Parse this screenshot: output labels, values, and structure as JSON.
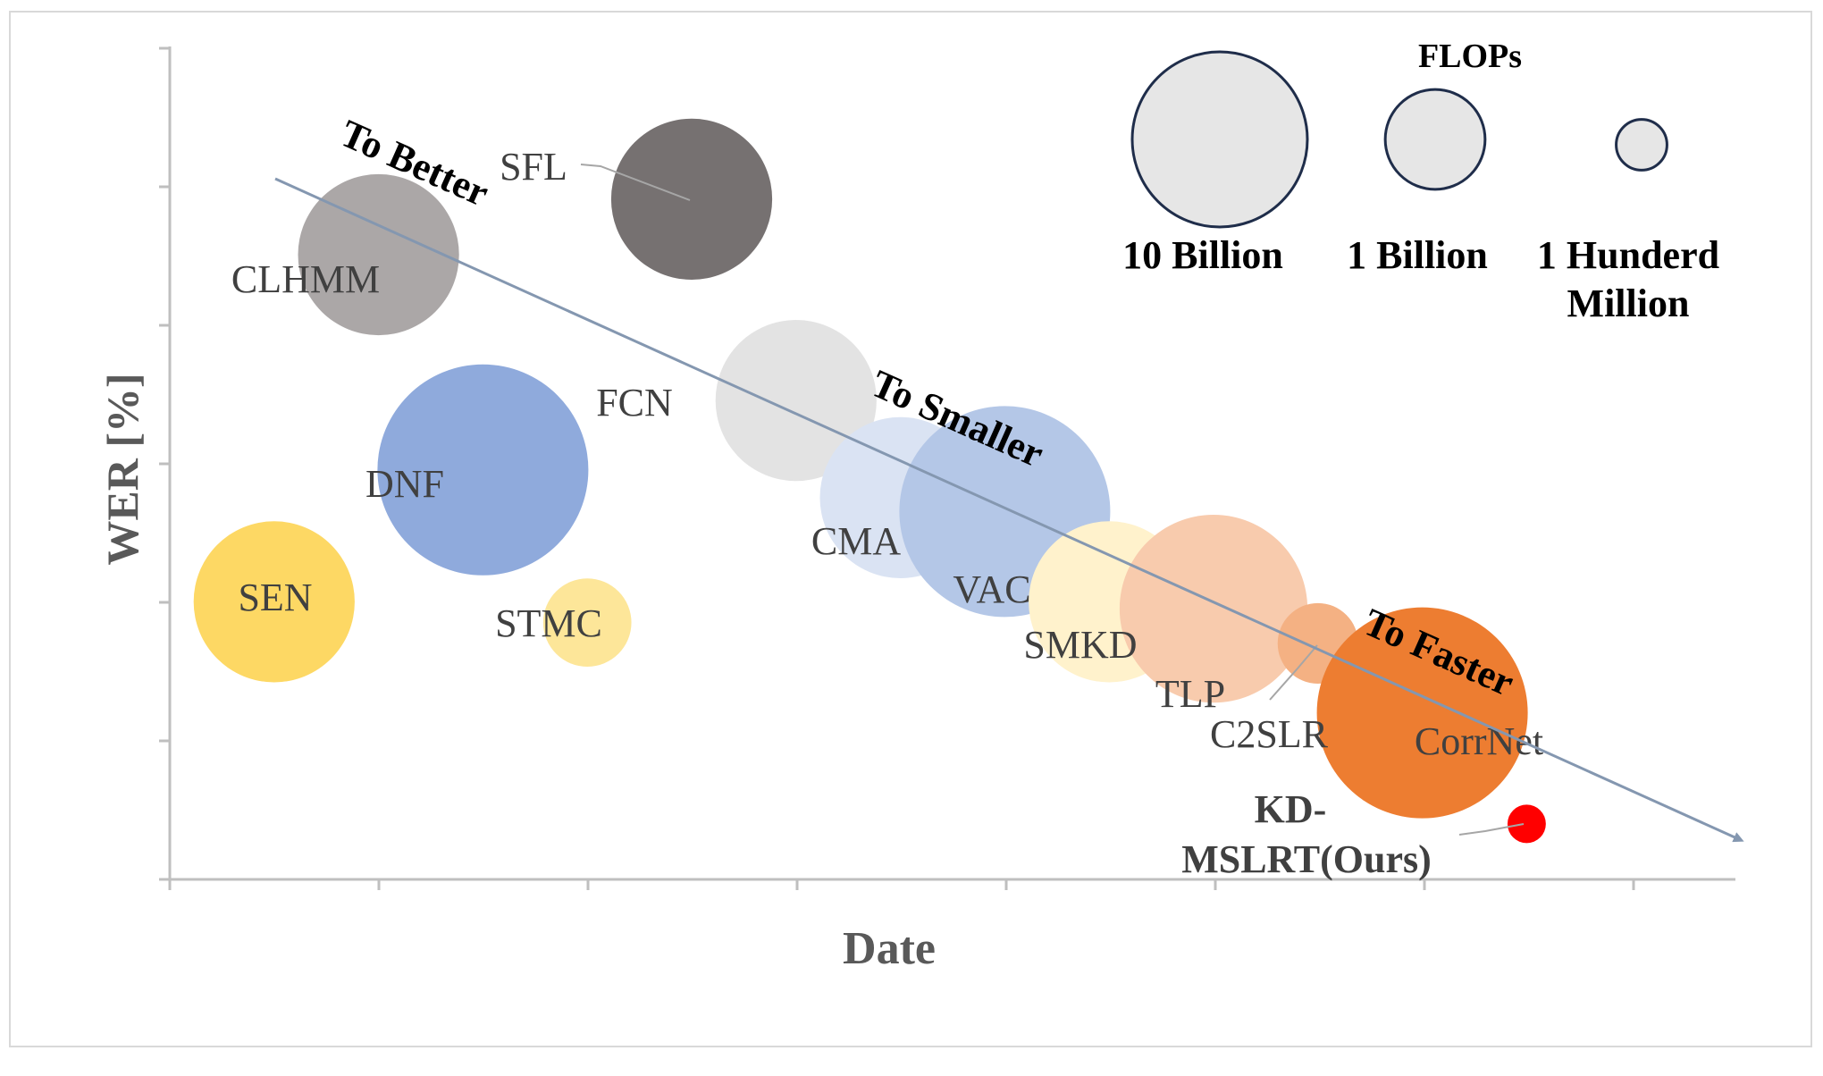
{
  "chart_data": {
    "type": "scatter",
    "xlabel": "Date",
    "ylabel": "WER [%]",
    "grid": false,
    "x_ticks": 8,
    "y_ticks": 7,
    "xlim": [
      0,
      7.5
    ],
    "ylim": [
      0,
      6
    ],
    "size_legend": {
      "title": "FLOPs",
      "entries": [
        {
          "label": "10 Billion",
          "radius_scale": 1.0
        },
        {
          "label": "1 Billion",
          "radius_scale": 0.57
        },
        {
          "label": "1 Hunderd Million",
          "radius_scale": 0.29
        }
      ]
    },
    "points": [
      {
        "name": "SEN",
        "x": 0.5,
        "y": 2.0,
        "size": 0.84,
        "color": "#FDD864",
        "label_bold": false
      },
      {
        "name": "CLHMM",
        "x": 1.0,
        "y": 4.5,
        "size": 0.84,
        "color": "#ABA7A7",
        "label_bold": false
      },
      {
        "name": "DNF",
        "x": 1.5,
        "y": 2.95,
        "size": 1.1,
        "color": "#8FAADC",
        "label_bold": false
      },
      {
        "name": "STMC",
        "x": 2.0,
        "y": 1.85,
        "size": 0.46,
        "color": "#FDE699",
        "label_bold": false
      },
      {
        "name": "SFL",
        "x": 2.5,
        "y": 4.9,
        "size": 0.84,
        "color": "#767171",
        "label_bold": false
      },
      {
        "name": "FCN",
        "x": 3.0,
        "y": 3.45,
        "size": 0.84,
        "color": "#E3E3E3",
        "label_bold": false
      },
      {
        "name": "CMA",
        "x": 3.5,
        "y": 2.75,
        "size": 0.84,
        "color": "#DAE3F3",
        "label_bold": false
      },
      {
        "name": "VAC",
        "x": 4.0,
        "y": 2.65,
        "size": 1.1,
        "color": "#B4C7E7",
        "label_bold": false
      },
      {
        "name": "SMKD",
        "x": 4.5,
        "y": 2.0,
        "size": 0.84,
        "color": "#FFF2CC",
        "label_bold": false
      },
      {
        "name": "TLP",
        "x": 5.0,
        "y": 1.95,
        "size": 0.98,
        "color": "#F8CBAD",
        "label_bold": false
      },
      {
        "name": "C2SLR",
        "x": 5.5,
        "y": 1.7,
        "size": 0.42,
        "color": "#F4B183",
        "label_bold": false
      },
      {
        "name": "CorrNet",
        "x": 6.0,
        "y": 1.2,
        "size": 1.1,
        "color": "#ED7D31",
        "label_bold": false
      },
      {
        "name": "KD-\nMSLRT(Ours)",
        "x": 6.5,
        "y": 0.4,
        "size": 0.2,
        "color": "#FF0000",
        "label_bold": true
      }
    ],
    "annotations": [
      "To Better",
      "To Smaller",
      "To Faster"
    ],
    "trend_arrow_color": "#8497B0"
  }
}
